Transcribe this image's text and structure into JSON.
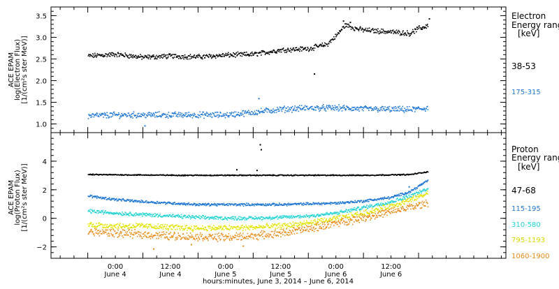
{
  "chart_data": [
    {
      "type": "scatter",
      "ylabel_lines": [
        "ACE EPAM",
        "log(Electron Flux)",
        "[1/(cm²s ster MeV)]"
      ],
      "ylim": [
        0.8,
        3.7
      ],
      "yticks": [
        1.0,
        1.5,
        2.0,
        2.5,
        3.0,
        3.5
      ],
      "ytick_labels": [
        "1.0",
        "1.5",
        "2.0",
        "2.5",
        "3.0",
        "3.5"
      ],
      "legend_title": [
        "Electron",
        "Energy ranges",
        "[keV]"
      ],
      "legend_placement": "right",
      "series": [
        {
          "name": "38-53",
          "color": "#000000",
          "points": [
            [
              0,
              2.58
            ],
            [
              6,
              2.62
            ],
            [
              12,
              2.55
            ],
            [
              18,
              2.58
            ],
            [
              24,
              2.56
            ],
            [
              30,
              2.6
            ],
            [
              36,
              2.62
            ],
            [
              42,
              2.72
            ],
            [
              48,
              2.75
            ],
            [
              52,
              2.85
            ],
            [
              54,
              3.05
            ],
            [
              56,
              3.3
            ],
            [
              58,
              3.22
            ],
            [
              60,
              3.18
            ],
            [
              64,
              3.15
            ],
            [
              68,
              3.12
            ],
            [
              70,
              3.1
            ],
            [
              72,
              3.22
            ],
            [
              74,
              3.28
            ]
          ],
          "outliers": [
            [
              55.5,
              3.39
            ],
            [
              57.0,
              3.36
            ],
            [
              72.6,
              3.2
            ],
            [
              74.2,
              3.44
            ],
            [
              49.2,
              2.17
            ]
          ],
          "noise": 0.045
        },
        {
          "name": "175-315",
          "color": "#1f77d4",
          "points": [
            [
              0,
              1.2
            ],
            [
              6,
              1.22
            ],
            [
              12,
              1.22
            ],
            [
              18,
              1.22
            ],
            [
              24,
              1.22
            ],
            [
              30,
              1.22
            ],
            [
              36,
              1.28
            ],
            [
              42,
              1.35
            ],
            [
              48,
              1.38
            ],
            [
              54,
              1.38
            ],
            [
              60,
              1.36
            ],
            [
              66,
              1.35
            ],
            [
              70,
              1.34
            ],
            [
              74,
              1.38
            ]
          ],
          "outliers": [
            [
              12.3,
              0.97
            ],
            [
              37.1,
              1.6
            ]
          ],
          "noise": 0.055
        }
      ]
    },
    {
      "type": "scatter",
      "ylabel_lines": [
        "ACE EPAM",
        "log(Proton Flux)",
        "[1/(cm²s ster MeV)]"
      ],
      "ylim": [
        -2.8,
        6.0
      ],
      "yticks": [
        -2,
        0,
        2,
        4
      ],
      "ytick_labels": [
        "−2",
        "0",
        "2",
        "4"
      ],
      "legend_title": [
        "Proton",
        "Energy ranges",
        "[keV]"
      ],
      "legend_placement": "right",
      "series": [
        {
          "name": "47-68",
          "color": "#000000",
          "points": [
            [
              0,
              3.1
            ],
            [
              20,
              3.05
            ],
            [
              40,
              3.05
            ],
            [
              60,
              3.05
            ],
            [
              70,
              3.1
            ],
            [
              74,
              3.3
            ]
          ],
          "outliers": [
            [
              37.4,
              5.2
            ],
            [
              37.6,
              4.85
            ],
            [
              32.3,
              3.45
            ],
            [
              36.7,
              3.4
            ]
          ],
          "noise": 0.03
        },
        {
          "name": "115-195",
          "color": "#1f77d4",
          "points": [
            [
              0,
              1.6
            ],
            [
              6,
              1.35
            ],
            [
              12,
              1.2
            ],
            [
              18,
              1.1
            ],
            [
              24,
              1.0
            ],
            [
              30,
              1.0
            ],
            [
              36,
              1.0
            ],
            [
              42,
              1.0
            ],
            [
              48,
              1.05
            ],
            [
              54,
              1.1
            ],
            [
              60,
              1.25
            ],
            [
              66,
              1.5
            ],
            [
              70,
              1.9
            ],
            [
              74,
              2.7
            ]
          ],
          "outliers": [
            [
              69.8,
              2.25
            ],
            [
              72.5,
              2.45
            ]
          ],
          "noise": 0.07
        },
        {
          "name": "310-580",
          "color": "#22d3d3",
          "points": [
            [
              0,
              0.55
            ],
            [
              6,
              0.4
            ],
            [
              12,
              0.3
            ],
            [
              18,
              0.2
            ],
            [
              24,
              0.1
            ],
            [
              30,
              0.05
            ],
            [
              36,
              0.05
            ],
            [
              42,
              0.1
            ],
            [
              48,
              0.2
            ],
            [
              54,
              0.4
            ],
            [
              60,
              0.8
            ],
            [
              66,
              1.2
            ],
            [
              70,
              1.6
            ],
            [
              74,
              2.1
            ]
          ],
          "outliers": [],
          "noise": 0.1
        },
        {
          "name": "795-1193",
          "color": "#e3e300",
          "points": [
            [
              0,
              -0.4
            ],
            [
              6,
              -0.5
            ],
            [
              12,
              -0.5
            ],
            [
              18,
              -0.6
            ],
            [
              24,
              -0.65
            ],
            [
              30,
              -0.65
            ],
            [
              36,
              -0.6
            ],
            [
              42,
              -0.5
            ],
            [
              48,
              -0.3
            ],
            [
              54,
              0.0
            ],
            [
              60,
              0.4
            ],
            [
              66,
              0.9
            ],
            [
              70,
              1.3
            ],
            [
              74,
              1.8
            ]
          ],
          "outliers": [],
          "noise": 0.16
        },
        {
          "name": "1060-1900",
          "color": "#e88a14",
          "points": [
            [
              0,
              -0.9
            ],
            [
              6,
              -1.0
            ],
            [
              12,
              -1.1
            ],
            [
              18,
              -1.2
            ],
            [
              24,
              -1.25
            ],
            [
              30,
              -1.3
            ],
            [
              36,
              -1.2
            ],
            [
              42,
              -1.0
            ],
            [
              48,
              -0.7
            ],
            [
              54,
              -0.3
            ],
            [
              60,
              0.1
            ],
            [
              66,
              0.5
            ],
            [
              70,
              0.8
            ],
            [
              74,
              1.1
            ]
          ],
          "outliers": [
            [
              14.2,
              -2.1
            ],
            [
              33.7,
              -1.9
            ],
            [
              22.4,
              -1.8
            ]
          ],
          "noise": 0.22
        }
      ]
    }
  ],
  "x_axis": {
    "xlim": [
      -8,
      91
    ],
    "major_ticks": [
      0,
      12,
      24,
      36,
      48,
      60,
      72
    ],
    "minor_step": 3,
    "time_labels": [
      "0:00",
      "12:00",
      "0:00",
      "12:00",
      "0:00",
      "12:00"
    ],
    "date_labels": [
      "June 4",
      "June 4",
      "June 5",
      "June 5",
      "June 6",
      "June 6"
    ],
    "xlabel": "hours:minutes, June  3, 2014 – June  6, 2014"
  }
}
